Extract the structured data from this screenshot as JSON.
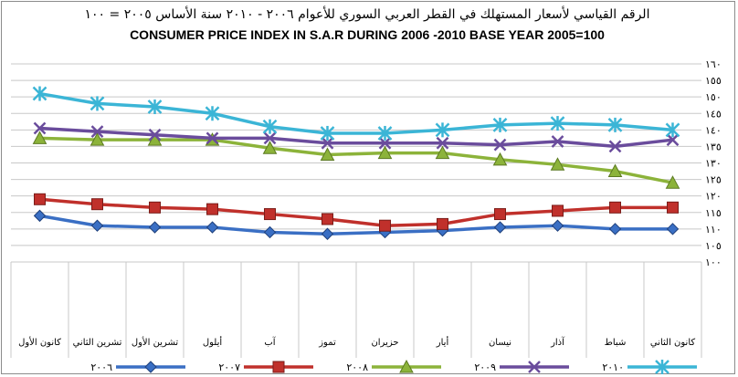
{
  "chart_data": {
    "type": "line",
    "title_ar": "الرقم القياسي لأسعار المستهلك في القطر العربي السوري للأعوام ٢٠٠٦ - ٢٠١٠ سنة الأساس ٢٠٠٥ = ١٠٠",
    "title_en": "CONSUMER PRICE INDEX IN S.A.R DURING 2006 -2010 BASE YEAR 2005=100",
    "categories": [
      "كانون الثاني",
      "شباط",
      "آذار",
      "نيسان",
      "أيار",
      "حزيران",
      "تموز",
      "آب",
      "أيلول",
      "تشرين الأول",
      "تشرين الثاني",
      "كانون الأول"
    ],
    "ylim": [
      100,
      160
    ],
    "yticks": [
      100,
      105,
      110,
      115,
      120,
      125,
      130,
      135,
      140,
      145,
      150,
      155,
      160
    ],
    "ytick_labels": [
      "١٠٠",
      "١٠٥",
      "١١٠",
      "١١٥",
      "١٢٠",
      "١٢٥",
      "١٣٠",
      "١٣٥",
      "١٤٠",
      "١٤٥",
      "١٥٠",
      "١٥٥",
      "١٦٠"
    ],
    "grid": "horizontal",
    "legend_position": "bottom",
    "series": [
      {
        "name": "٢٠٠٦",
        "color": "#3a6fc4",
        "marker": "diamond",
        "values": [
          110,
          110,
          111,
          110.5,
          109.5,
          109,
          108.5,
          109,
          110.5,
          110.5,
          111,
          114
        ]
      },
      {
        "name": "٢٠٠٧",
        "color": "#c0302b",
        "marker": "square",
        "values": [
          116.5,
          116.5,
          115.5,
          114.5,
          111.5,
          111,
          113,
          114.5,
          116,
          116.5,
          117.5,
          119
        ]
      },
      {
        "name": "٢٠٠٨",
        "color": "#8cb33a",
        "marker": "triangle",
        "values": [
          124,
          127.5,
          129.5,
          131,
          133,
          133,
          132.5,
          134.5,
          137,
          137,
          137,
          137.5
        ]
      },
      {
        "name": "٢٠٠٩",
        "color": "#6a4c9c",
        "marker": "x",
        "values": [
          137,
          135,
          136.5,
          135.5,
          136,
          136,
          136,
          137.5,
          137.5,
          138.5,
          139.5,
          140.5
        ]
      },
      {
        "name": "٢٠١٠",
        "color": "#3bb5d6",
        "marker": "star",
        "values": [
          140,
          141.5,
          142,
          141.5,
          140,
          139,
          139,
          141,
          145,
          147,
          148,
          151
        ]
      }
    ]
  }
}
